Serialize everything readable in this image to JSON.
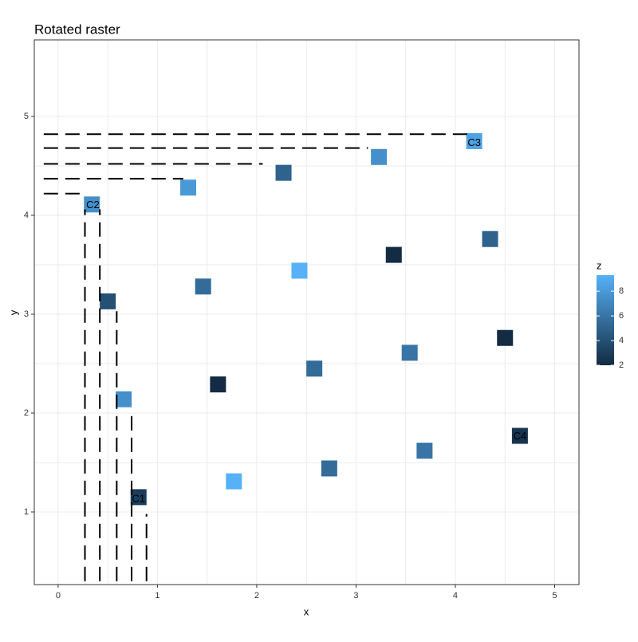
{
  "chart_data": {
    "type": "tile",
    "title": "Rotated raster",
    "x_label": "x",
    "y_label": "y",
    "legend_title": "z",
    "x": [
      0.81,
      1.77,
      2.73,
      3.69,
      4.65,
      0.66,
      1.61,
      2.58,
      3.54,
      4.5,
      0.5,
      1.46,
      2.43,
      3.38,
      4.35,
      0.34,
      1.31,
      2.27,
      3.23,
      4.19
    ],
    "y": [
      1.15,
      1.31,
      1.44,
      1.62,
      1.77,
      2.14,
      2.29,
      2.45,
      2.61,
      2.76,
      3.13,
      3.28,
      3.44,
      3.6,
      3.76,
      4.11,
      4.28,
      4.43,
      4.59,
      4.75
    ],
    "z": [
      3,
      9.3,
      5.5,
      6,
      2.5,
      7.5,
      2,
      5.5,
      6,
      2,
      4,
      5.5,
      9.3,
      2,
      5,
      7.5,
      8,
      5,
      7.5,
      8.5
    ],
    "colors": [
      "#132B43",
      "#56B1F7"
    ],
    "zlim": [
      2,
      9.3
    ],
    "zticks": [
      2,
      4,
      6,
      8
    ],
    "labels": [
      {
        "text": "C1",
        "x": 0.81,
        "y": 1.13
      },
      {
        "text": "C2",
        "x": 0.35,
        "y": 4.1
      },
      {
        "text": "C3",
        "x": 4.19,
        "y": 4.73
      },
      {
        "text": "C4",
        "x": 4.65,
        "y": 1.76
      }
    ],
    "segments": [
      {
        "x": 0.27,
        "xend": 0.27,
        "y": 0.3,
        "yend": 4.06
      },
      {
        "x": 0.42,
        "xend": 0.42,
        "y": 0.3,
        "yend": 4.06
      },
      {
        "x": 0.59,
        "xend": 0.59,
        "y": 0.3,
        "yend": 3.03
      },
      {
        "x": 0.74,
        "xend": 0.74,
        "y": 0.3,
        "yend": 2.02
      },
      {
        "x": 0.89,
        "xend": 0.89,
        "y": 0.3,
        "yend": 0.98
      },
      {
        "x": -0.145,
        "xend": 4.15,
        "y": 4.82,
        "yend": 4.82
      },
      {
        "x": -0.145,
        "xend": 3.12,
        "y": 4.68,
        "yend": 4.68
      },
      {
        "x": -0.145,
        "xend": 2.06,
        "y": 4.52,
        "yend": 4.52
      },
      {
        "x": -0.145,
        "xend": 1.26,
        "y": 4.37,
        "yend": 4.37
      },
      {
        "x": -0.145,
        "xend": 0.26,
        "y": 4.22,
        "yend": 4.22
      }
    ],
    "xlim": [
      -0.24,
      5.245
    ],
    "ylim": [
      0.266,
      5.774
    ],
    "xticks": [
      0,
      1,
      2,
      3,
      4,
      5
    ],
    "yticks": [
      1,
      2,
      3,
      4,
      5
    ],
    "grid": true
  }
}
